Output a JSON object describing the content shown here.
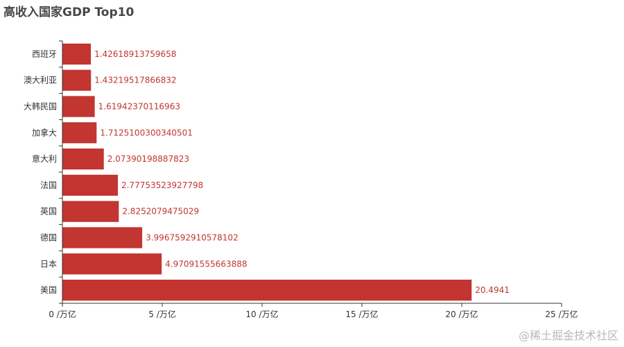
{
  "chart_data": {
    "type": "bar",
    "orientation": "horizontal",
    "title": "高收入国家GDP Top10",
    "categories": [
      "美国",
      "日本",
      "德国",
      "英国",
      "法国",
      "意大利",
      "加拿大",
      "大韩民国",
      "澳大利亚",
      "西班牙"
    ],
    "values": [
      20.4941,
      4.97091555663888,
      3.9967592910578102,
      2.8252079475029,
      2.77753523927798,
      2.07390198887823,
      1.7125100300340501,
      1.61942370116963,
      1.43219517866832,
      1.42618913759658
    ],
    "data_labels": [
      "20.4941",
      "4.97091555663888",
      "3.9967592910578102",
      "2.8252079475029",
      "2.77753523927798",
      "2.07390198887823",
      "1.7125100300340501",
      "1.61942370116963",
      "1.43219517866832",
      "1.42618913759658"
    ],
    "xlim": [
      0,
      25
    ],
    "x_ticks": [
      0,
      5,
      10,
      15,
      20,
      25
    ],
    "x_tick_labels": [
      "0 /万亿",
      "5 /万亿",
      "10 /万亿",
      "15 /万亿",
      "20 /万亿",
      "25 /万亿"
    ],
    "xlabel": "",
    "ylabel": "",
    "grid": false,
    "bar_color": "#c23531"
  },
  "watermark": "@稀土掘金技术社区"
}
